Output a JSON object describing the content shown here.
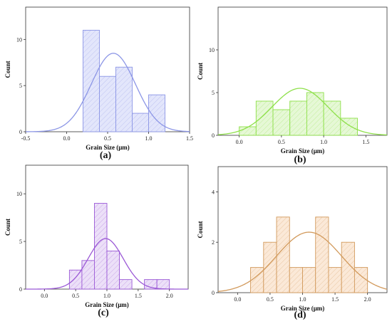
{
  "chart_data": [
    {
      "type": "bar",
      "panel_label": "(a)",
      "xlabel": "Grain Size (μm)",
      "ylabel": "Count",
      "xlim": [
        -0.5,
        1.5
      ],
      "ylim": [
        0,
        13.5
      ],
      "xticks": [
        "-0.5",
        "0.0",
        "0.5",
        "1.0",
        "1.5"
      ],
      "yticks": [
        "0",
        "5",
        "10"
      ],
      "bin_width": 0.2,
      "bins": [
        0.2,
        0.4,
        0.6,
        0.8,
        1.0
      ],
      "values": [
        11,
        6,
        7,
        2,
        4
      ],
      "fit_curve": {
        "type": "normal",
        "mean": 0.57,
        "sd": 0.27,
        "peak": 8.5
      },
      "color": "#8c96e6",
      "fill": "#e3e6fb"
    },
    {
      "type": "bar",
      "panel_label": "(b)",
      "xlabel": "Grain Size (μm)",
      "ylabel": "Count",
      "xlim": [
        -0.25,
        1.75
      ],
      "ylim": [
        0,
        15
      ],
      "xticks": [
        "0.0",
        "0.5",
        "1.0",
        "1.5"
      ],
      "yticks": [
        "0",
        "5",
        "10"
      ],
      "bin_width": 0.2,
      "bins": [
        -0.2,
        0.0,
        0.2,
        0.4,
        0.6,
        0.8,
        1.0,
        1.2
      ],
      "values": [
        0,
        1,
        4,
        3,
        4,
        5,
        4,
        2
      ],
      "fit_curve": {
        "type": "normal",
        "mean": 0.72,
        "sd": 0.33,
        "peak": 5.5
      },
      "color": "#8ee04a",
      "fill": "#e6f8d6"
    },
    {
      "type": "bar",
      "panel_label": "(c)",
      "xlabel": "Grain Size (μm)",
      "ylabel": "Count",
      "xlim": [
        -0.3,
        2.3
      ],
      "ylim": [
        0,
        13
      ],
      "xticks": [
        "0.0",
        "0.5",
        "1.0",
        "1.5",
        "2.0"
      ],
      "yticks": [
        "0",
        "5",
        "10"
      ],
      "bin_width": 0.2,
      "bins": [
        0.4,
        0.6,
        0.8,
        1.0,
        1.2,
        1.4,
        1.6,
        1.8
      ],
      "values": [
        2,
        3,
        9,
        4,
        1,
        0,
        1,
        1
      ],
      "fit_curve": {
        "type": "normal",
        "mean": 0.98,
        "sd": 0.28,
        "peak": 5.3
      },
      "color": "#9b59d6",
      "fill": "#ece0f8"
    },
    {
      "type": "bar",
      "panel_label": "(d)",
      "xlabel": "Grain Size (μm)",
      "ylabel": "Count",
      "xlim": [
        -0.3,
        2.3
      ],
      "ylim": [
        0,
        5
      ],
      "xticks": [
        "0.0",
        "0.5",
        "1.0",
        "1.5",
        "2.0"
      ],
      "yticks": [
        "0",
        "2",
        "4"
      ],
      "bin_width": 0.2,
      "bins": [
        0.2,
        0.4,
        0.6,
        0.8,
        1.0,
        1.2,
        1.4,
        1.6,
        1.8
      ],
      "values": [
        1,
        2,
        3,
        1,
        1,
        3,
        1,
        2,
        1
      ],
      "fit_curve": {
        "type": "normal",
        "mean": 1.1,
        "sd": 0.5,
        "peak": 2.4
      },
      "color": "#d29a5c",
      "fill": "#fbe9d8"
    }
  ]
}
